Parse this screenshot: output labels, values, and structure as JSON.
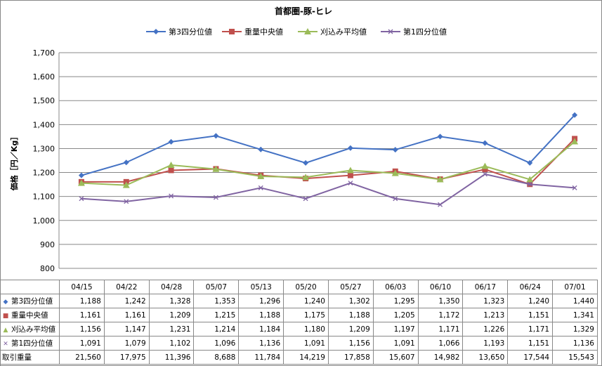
{
  "chart_data": {
    "type": "line",
    "title": "首都圏-豚-ヒレ",
    "ylabel": "価格［円／Kg］",
    "xlabel": "",
    "ylim": [
      800,
      1700
    ],
    "yticks": [
      800,
      900,
      1000,
      1100,
      1200,
      1300,
      1400,
      1500,
      1600,
      1700
    ],
    "grid": "horizontal",
    "legend": "top",
    "categories": [
      "04/15",
      "04/22",
      "04/28",
      "05/07",
      "05/13",
      "05/20",
      "05/27",
      "06/03",
      "06/10",
      "06/17",
      "06/24",
      "07/01"
    ],
    "series": [
      {
        "name": "第3四分位値",
        "color": "#4472C4",
        "marker": "diamond",
        "values": [
          1188,
          1242,
          1328,
          1353,
          1296,
          1240,
          1302,
          1295,
          1350,
          1323,
          1240,
          1440
        ]
      },
      {
        "name": "重量中央値",
        "color": "#C0504D",
        "marker": "square",
        "values": [
          1161,
          1161,
          1209,
          1215,
          1188,
          1175,
          1188,
          1205,
          1172,
          1213,
          1151,
          1341
        ]
      },
      {
        "name": "刈込み平均値",
        "color": "#9BBB59",
        "marker": "triangle",
        "values": [
          1156,
          1147,
          1231,
          1214,
          1184,
          1180,
          1209,
          1197,
          1171,
          1226,
          1171,
          1329
        ]
      },
      {
        "name": "第1四分位値",
        "color": "#8064A2",
        "marker": "x",
        "values": [
          1091,
          1079,
          1102,
          1096,
          1136,
          1091,
          1156,
          1091,
          1066,
          1193,
          1151,
          1136
        ]
      }
    ],
    "volume": {
      "name": "取引重量",
      "values": [
        21560,
        17975,
        11396,
        8688,
        11784,
        14219,
        17858,
        15607,
        14982,
        13650,
        17544,
        15543
      ]
    }
  }
}
